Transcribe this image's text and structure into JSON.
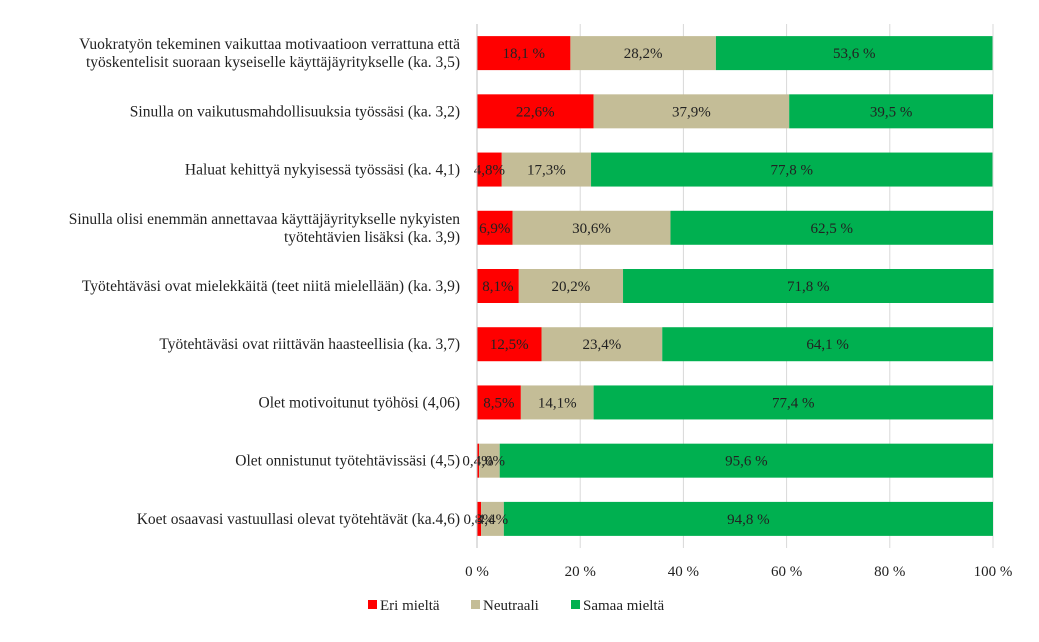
{
  "chart_data": {
    "type": "bar",
    "stacked": true,
    "orientation": "horizontal",
    "title": "",
    "xlabel": "",
    "ylabel": "",
    "xlim": [
      0,
      100
    ],
    "x_ticks": [
      "0 %",
      "20 %",
      "40 %",
      "60 %",
      "80 %",
      "100 %"
    ],
    "legend_position": "bottom",
    "categories": [
      "Vuokratyön tekeminen vaikuttaa motivaatioon verrattuna että\ntyöskentelisit suoraan kyseiselle käyttäjäyritykselle (ka. 3,5)",
      "Sinulla on vaikutusmahdollisuuksia työssäsi (ka. 3,2)",
      "Haluat kehittyä nykyisessä työssäsi (ka. 4,1)",
      "Sinulla olisi enemmän annettavaa käyttäjäyritykselle nykyisten\ntyötehtävien lisäksi (ka. 3,9)",
      "Työtehtäväsi ovat mielekkäitä (teet niitä mielellään) (ka. 3,9)",
      "Työtehtäväsi ovat riittävän haasteellisia (ka. 3,7)",
      "Olet motivoitunut työhösi (4,06)",
      "Olet onnistunut työtehtävissäsi (4,5)",
      "Koet osaavasi vastuullasi olevat työtehtävät (ka.4,6)"
    ],
    "series": [
      {
        "name": "Eri mieltä",
        "color": "#ff0000",
        "values": [
          18.1,
          22.6,
          4.8,
          6.9,
          8.1,
          12.5,
          8.5,
          0.4,
          0.8
        ],
        "labels": [
          "18,1 %",
          "22,6%",
          "4,8%",
          "6,9%",
          "8,1%",
          "12,5%",
          "8,5%",
          "0,4%",
          "0,8%"
        ]
      },
      {
        "name": "Neutraali",
        "color": "#c4bd97",
        "values": [
          28.2,
          37.9,
          17.3,
          30.6,
          20.2,
          23.4,
          14.1,
          4.0,
          4.4
        ],
        "labels": [
          "28,2%",
          "37,9%",
          "17,3%",
          "30,6%",
          "20,2%",
          "23,4%",
          "14,1%",
          "4,0%",
          "4,4%"
        ]
      },
      {
        "name": "Samaa mieltä",
        "color": "#00b050",
        "values": [
          53.6,
          39.5,
          77.8,
          62.5,
          71.8,
          64.1,
          77.4,
          95.6,
          94.8
        ],
        "labels": [
          "53,6 %",
          "39,5 %",
          "77,8 %",
          "62,5 %",
          "71,8 %",
          "64,1 %",
          "77,4 %",
          "95,6 %",
          "94,8 %"
        ]
      }
    ]
  }
}
